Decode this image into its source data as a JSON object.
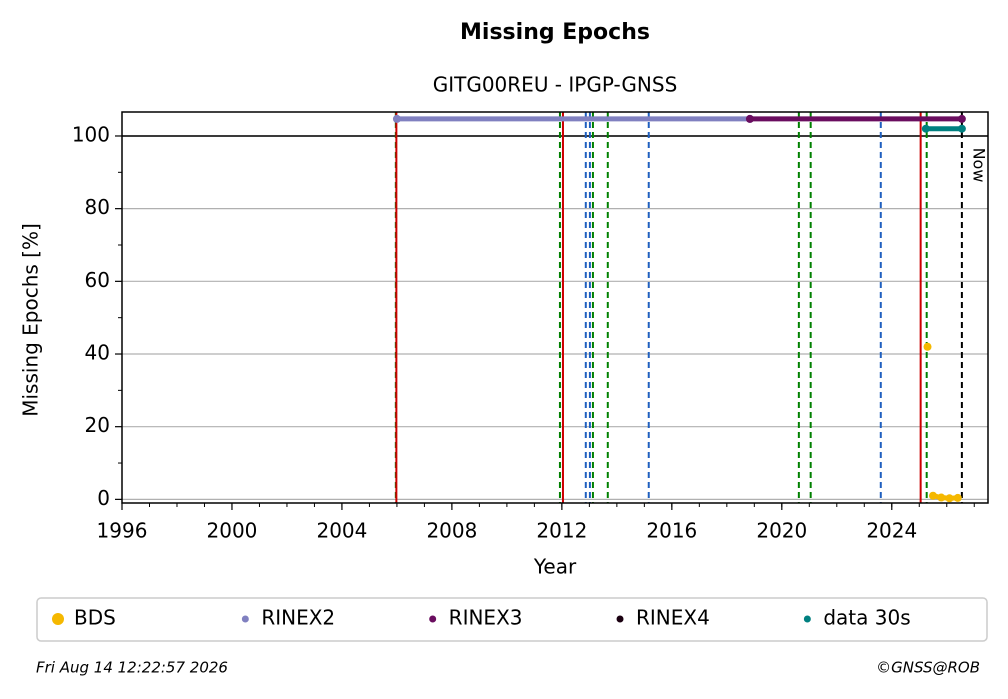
{
  "chart_data": {
    "type": "line",
    "title": "Missing Epochs",
    "subtitle": "GITG00REU - IPGP-GNSS",
    "x_label": "Year",
    "y_label": "Missing Epochs [%]",
    "xlim": [
      1996,
      2027.5
    ],
    "ylim": [
      -1,
      106.6
    ],
    "xticks": [
      1996,
      2000,
      2004,
      2008,
      2012,
      2016,
      2020,
      2024
    ],
    "yticks": [
      0,
      20,
      40,
      60,
      80,
      100
    ],
    "grid": true,
    "reference_line": 100,
    "series": [
      {
        "name": "BDS",
        "color": "#f5b800",
        "x": [
          2025.3,
          2025.4,
          2025.5,
          2025.8,
          2026.1,
          2026.4
        ],
        "values": [
          42,
          null,
          1,
          0.5,
          0.3,
          0.4
        ]
      },
      {
        "name": "RINEX2",
        "color": "#8080c0",
        "x": [
          2006.0,
          2018.84
        ],
        "values": [
          104.7,
          104.7
        ]
      },
      {
        "name": "RINEX3",
        "color": "#6a0d5f",
        "x": [
          2018.84,
          2026.55
        ],
        "values": [
          104.7,
          104.7
        ]
      },
      {
        "name": "RINEX4",
        "color": "#1a0010",
        "x": [],
        "values": []
      },
      {
        "name": "data 30s",
        "color": "#008080",
        "x": [
          2025.24,
          2026.55
        ],
        "values": [
          102,
          102
        ]
      }
    ],
    "events": [
      {
        "x": 2005.96,
        "color": "#008000",
        "style": "dashed"
      },
      {
        "x": 2005.98,
        "color": "#cc0000",
        "style": "solid"
      },
      {
        "x": 2011.93,
        "color": "#008000",
        "style": "dashed"
      },
      {
        "x": 2012.04,
        "color": "#cc0000",
        "style": "solid"
      },
      {
        "x": 2012.87,
        "color": "#1f5fbf",
        "style": "dashed"
      },
      {
        "x": 2013.02,
        "color": "#1f5fbf",
        "style": "dashed"
      },
      {
        "x": 2013.13,
        "color": "#008000",
        "style": "dashed"
      },
      {
        "x": 2013.67,
        "color": "#008000",
        "style": "dashed"
      },
      {
        "x": 2015.16,
        "color": "#1f5fbf",
        "style": "dashed"
      },
      {
        "x": 2020.62,
        "color": "#008000",
        "style": "dashed"
      },
      {
        "x": 2021.05,
        "color": "#008000",
        "style": "dashed"
      },
      {
        "x": 2023.6,
        "color": "#1f5fbf",
        "style": "dashed"
      },
      {
        "x": 2025.05,
        "color": "#cc0000",
        "style": "solid"
      },
      {
        "x": 2025.27,
        "color": "#008000",
        "style": "dashed"
      }
    ],
    "now": {
      "x": 2026.55,
      "label": "Now"
    },
    "legend": "bottom",
    "timestamp": "Fri Aug 14 12:22:57 2026",
    "credit": "©GNSS@ROB"
  }
}
